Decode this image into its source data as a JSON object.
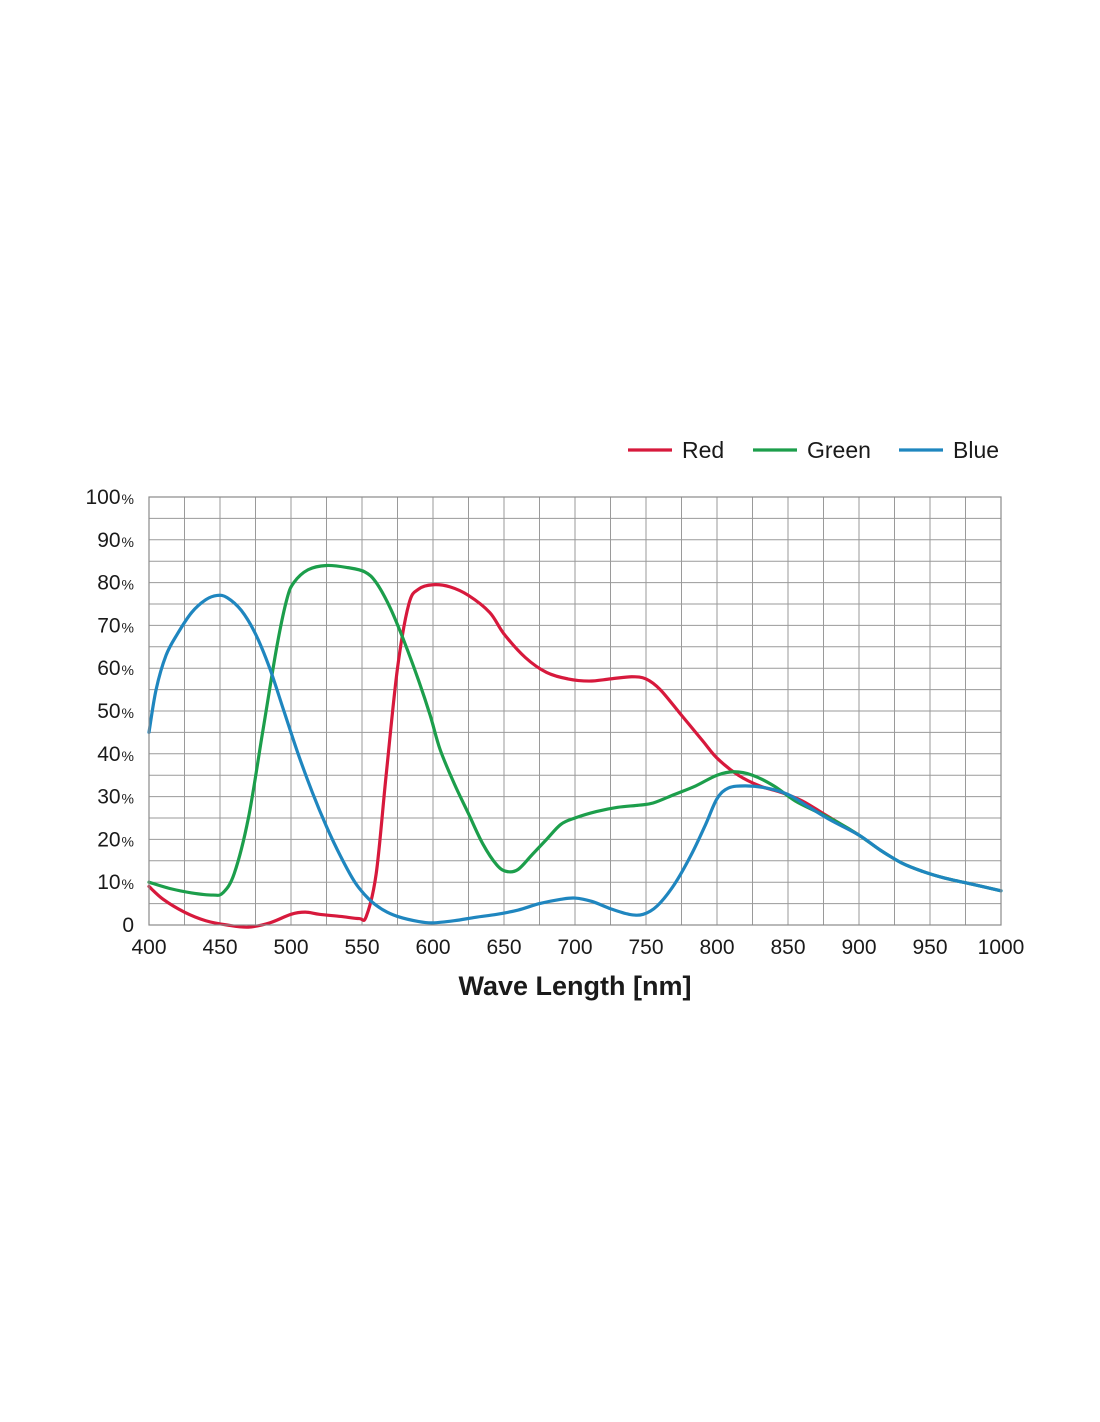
{
  "chart_data": {
    "type": "line",
    "title": "",
    "xlabel": "Wave Length [nm]",
    "ylabel": "",
    "xlim": [
      400,
      1000
    ],
    "ylim": [
      0,
      100
    ],
    "x_ticks": [
      400,
      450,
      500,
      550,
      600,
      650,
      700,
      750,
      800,
      850,
      900,
      950,
      1000
    ],
    "y_ticks": [
      {
        "value": 0,
        "label": "0",
        "unit": ""
      },
      {
        "value": 10,
        "label": "10",
        "unit": "%"
      },
      {
        "value": 20,
        "label": "20",
        "unit": "%"
      },
      {
        "value": 30,
        "label": "30",
        "unit": "%"
      },
      {
        "value": 40,
        "label": "40",
        "unit": "%"
      },
      {
        "value": 50,
        "label": "50",
        "unit": "%"
      },
      {
        "value": 60,
        "label": "60",
        "unit": "%"
      },
      {
        "value": 70,
        "label": "70",
        "unit": "%"
      },
      {
        "value": 80,
        "label": "80",
        "unit": "%"
      },
      {
        "value": 90,
        "label": "90",
        "unit": "%"
      },
      {
        "value": 100,
        "label": "100",
        "unit": "%"
      }
    ],
    "grid": {
      "x_step": 25,
      "y_step": 5,
      "enabled": true
    },
    "legend_position": "top-right",
    "series": [
      {
        "name": "Red",
        "color": "#d7193c",
        "points": [
          [
            400,
            9
          ],
          [
            410,
            6
          ],
          [
            425,
            3
          ],
          [
            440,
            1
          ],
          [
            455,
            0
          ],
          [
            470,
            -0.5
          ],
          [
            485,
            0.5
          ],
          [
            500,
            2.5
          ],
          [
            510,
            3
          ],
          [
            520,
            2.5
          ],
          [
            535,
            2
          ],
          [
            548,
            1.5
          ],
          [
            553,
            2
          ],
          [
            560,
            12
          ],
          [
            567,
            35
          ],
          [
            575,
            60
          ],
          [
            583,
            75
          ],
          [
            590,
            78.5
          ],
          [
            600,
            79.5
          ],
          [
            612,
            79
          ],
          [
            625,
            77
          ],
          [
            640,
            73
          ],
          [
            650,
            68
          ],
          [
            665,
            62.5
          ],
          [
            680,
            59
          ],
          [
            695,
            57.5
          ],
          [
            710,
            57
          ],
          [
            725,
            57.5
          ],
          [
            740,
            58
          ],
          [
            750,
            57.5
          ],
          [
            760,
            55
          ],
          [
            775,
            49
          ],
          [
            790,
            43
          ],
          [
            800,
            39
          ],
          [
            815,
            35
          ],
          [
            830,
            32.5
          ],
          [
            845,
            31
          ],
          [
            860,
            29
          ],
          [
            875,
            26
          ],
          [
            890,
            23
          ],
          [
            900,
            21
          ]
        ]
      },
      {
        "name": "Green",
        "color": "#1c9e4b",
        "points": [
          [
            400,
            10
          ],
          [
            415,
            8.5
          ],
          [
            430,
            7.5
          ],
          [
            445,
            7
          ],
          [
            452,
            7.5
          ],
          [
            460,
            12
          ],
          [
            470,
            25
          ],
          [
            480,
            45
          ],
          [
            490,
            65
          ],
          [
            497,
            76
          ],
          [
            502,
            80
          ],
          [
            512,
            83
          ],
          [
            525,
            84
          ],
          [
            540,
            83.5
          ],
          [
            552,
            82.5
          ],
          [
            560,
            80
          ],
          [
            570,
            74
          ],
          [
            580,
            66
          ],
          [
            590,
            57
          ],
          [
            598,
            49
          ],
          [
            605,
            41
          ],
          [
            615,
            33
          ],
          [
            625,
            26
          ],
          [
            635,
            19
          ],
          [
            645,
            14
          ],
          [
            652,
            12.5
          ],
          [
            660,
            13
          ],
          [
            670,
            16.5
          ],
          [
            680,
            20
          ],
          [
            690,
            23.5
          ],
          [
            700,
            25
          ],
          [
            715,
            26.5
          ],
          [
            730,
            27.5
          ],
          [
            745,
            28
          ],
          [
            755,
            28.5
          ],
          [
            770,
            30.5
          ],
          [
            785,
            32.5
          ],
          [
            800,
            35
          ],
          [
            812,
            35.8
          ],
          [
            825,
            35
          ],
          [
            840,
            32.5
          ],
          [
            855,
            29
          ],
          [
            870,
            26.5
          ],
          [
            885,
            24
          ],
          [
            900,
            21
          ],
          [
            915,
            17.5
          ],
          [
            930,
            14.5
          ],
          [
            945,
            12.5
          ],
          [
            960,
            11
          ],
          [
            980,
            9.5
          ],
          [
            1000,
            8
          ]
        ]
      },
      {
        "name": "Blue",
        "color": "#1f86bf",
        "points": [
          [
            400,
            45
          ],
          [
            405,
            55
          ],
          [
            412,
            63
          ],
          [
            420,
            68
          ],
          [
            430,
            73
          ],
          [
            440,
            76
          ],
          [
            448,
            77
          ],
          [
            455,
            76.5
          ],
          [
            465,
            73.5
          ],
          [
            475,
            68
          ],
          [
            485,
            60
          ],
          [
            495,
            50
          ],
          [
            505,
            40
          ],
          [
            515,
            31
          ],
          [
            525,
            23
          ],
          [
            535,
            16
          ],
          [
            545,
            10
          ],
          [
            555,
            6
          ],
          [
            565,
            3.5
          ],
          [
            575,
            2
          ],
          [
            590,
            0.8
          ],
          [
            600,
            0.5
          ],
          [
            615,
            1
          ],
          [
            630,
            1.8
          ],
          [
            645,
            2.5
          ],
          [
            660,
            3.5
          ],
          [
            675,
            5
          ],
          [
            690,
            6
          ],
          [
            700,
            6.3
          ],
          [
            712,
            5.5
          ],
          [
            725,
            3.8
          ],
          [
            738,
            2.5
          ],
          [
            748,
            2.5
          ],
          [
            758,
            4.5
          ],
          [
            770,
            9.5
          ],
          [
            782,
            16.5
          ],
          [
            792,
            23.5
          ],
          [
            800,
            29.5
          ],
          [
            808,
            32
          ],
          [
            820,
            32.5
          ],
          [
            835,
            32
          ],
          [
            850,
            30.5
          ],
          [
            865,
            27.5
          ],
          [
            880,
            24.5
          ],
          [
            900,
            21
          ],
          [
            915,
            17.5
          ],
          [
            930,
            14.5
          ],
          [
            945,
            12.5
          ],
          [
            960,
            11
          ],
          [
            980,
            9.5
          ],
          [
            1000,
            8
          ]
        ]
      }
    ]
  }
}
